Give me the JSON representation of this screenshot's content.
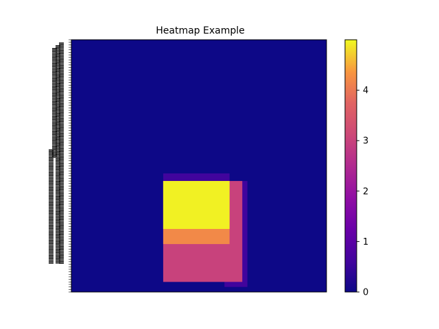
{
  "chart_data": {
    "type": "heatmap",
    "title": "Heatmap Example",
    "xlabel": "",
    "ylabel": "",
    "grid": false,
    "colormap": "plasma",
    "value_range": [
      0,
      5
    ],
    "background_value": 0,
    "regions": [
      {
        "name": "purple-block",
        "value": 0.6,
        "x_range": [
          0.36,
          0.62
        ],
        "y_range": [
          0.53,
          0.96
        ]
      },
      {
        "name": "purple-right-strip",
        "value": 0.6,
        "x_range": [
          0.6,
          0.69
        ],
        "y_range": [
          0.56,
          0.98
        ]
      },
      {
        "name": "salmon-block",
        "value": 3.0,
        "x_range": [
          0.36,
          0.67
        ],
        "y_range": [
          0.56,
          0.96
        ]
      },
      {
        "name": "orange-block",
        "value": 4.2,
        "x_range": [
          0.36,
          0.62
        ],
        "y_range": [
          0.56,
          0.81
        ]
      },
      {
        "name": "yellow-block",
        "value": 4.95,
        "x_range": [
          0.36,
          0.62
        ],
        "y_range": [
          0.56,
          0.75
        ]
      }
    ],
    "colorbar": {
      "ticks": [
        0,
        1,
        2,
        3,
        4
      ],
      "tick_labels": [
        "0",
        "1",
        "2",
        "3",
        "4"
      ]
    }
  }
}
